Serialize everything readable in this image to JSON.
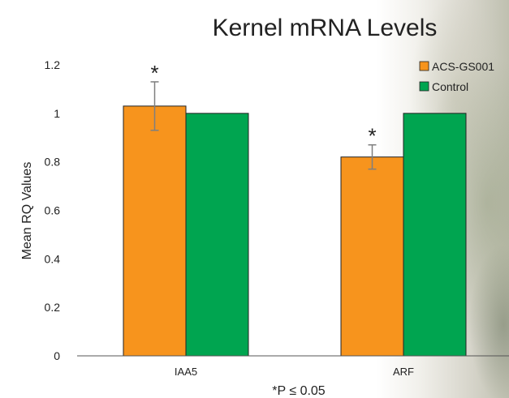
{
  "chart_data": {
    "type": "bar",
    "title": "Kernel mRNA Levels",
    "xlabel": "",
    "ylabel": "Mean RQ Values",
    "categories": [
      "IAA5",
      "ARF"
    ],
    "ylim": [
      0,
      1.2
    ],
    "yticks": [
      0,
      0.2,
      0.4,
      0.6,
      0.8,
      1,
      1.2
    ],
    "ytick_labels": [
      "0",
      "0.2",
      "0.4",
      "0.6",
      "0.8",
      "1",
      "1.2"
    ],
    "series": [
      {
        "name": "ACS-GS001",
        "values": [
          1.03,
          0.82
        ],
        "errors": [
          0.1,
          0.05
        ],
        "color": "#F7941D"
      },
      {
        "name": "Control",
        "values": [
          1.0,
          1.0
        ],
        "color": "#00A550"
      }
    ],
    "significance_marks": [
      "*",
      "*"
    ],
    "footnote": "*P ≤ 0.05",
    "grid": false,
    "legend_position": "top-right"
  }
}
